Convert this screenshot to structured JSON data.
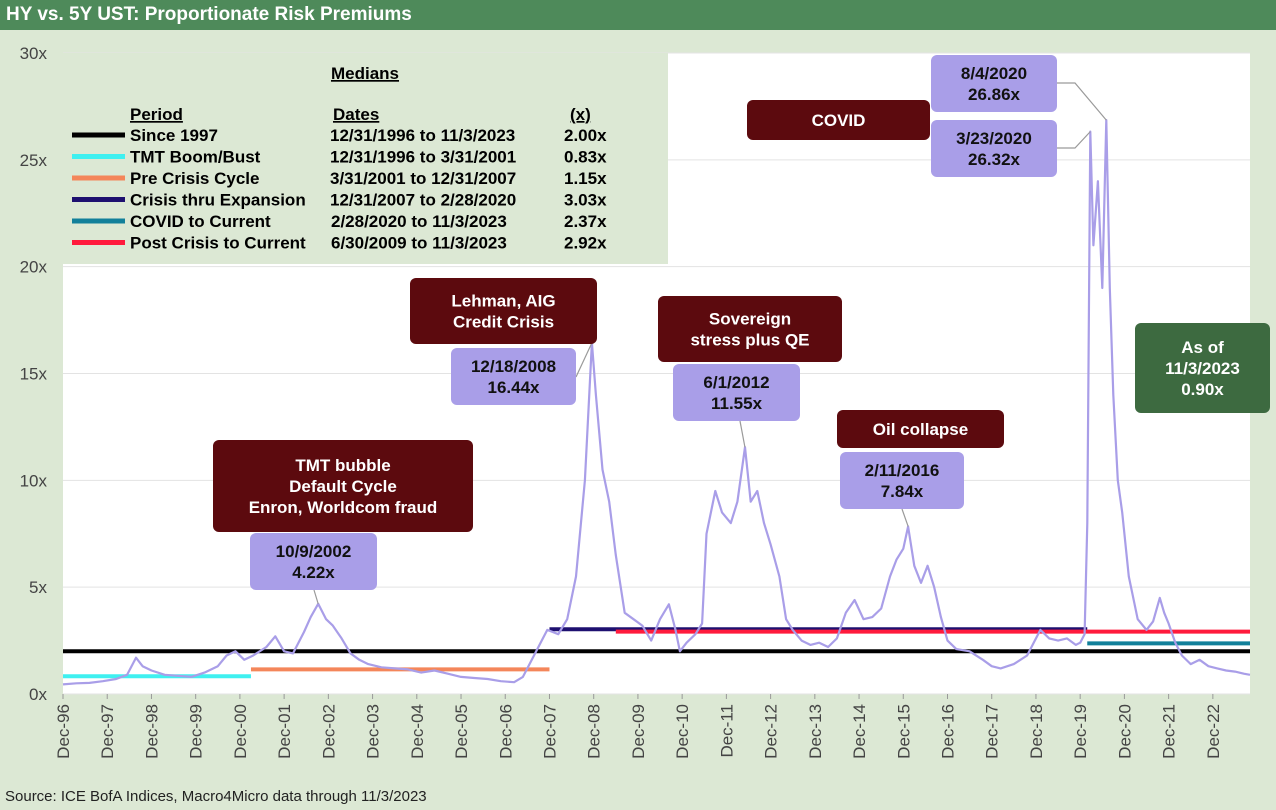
{
  "title": "HY vs. 5Y UST: Proportionate Risk Premiums",
  "source": "Source: ICE BofA Indices, Macro4Micro     data through 11/3/2023",
  "colors": {
    "header": "#4e8a5a",
    "background": "#dce8d4",
    "plot": "#ffffff",
    "series": "#a99ee8",
    "callout_dark": "#5c0a0e",
    "callout_lavender": "#a99ee8",
    "callout_green": "#3d6a40"
  },
  "chart_data": {
    "type": "line",
    "ylim": [
      0,
      30
    ],
    "yticks": [
      "0x",
      "5x",
      "10x",
      "15x",
      "20x",
      "25x",
      "30x"
    ],
    "xlim": [
      "12/31/1996",
      "11/3/2023"
    ],
    "xticks": [
      "Dec-96",
      "Dec-97",
      "Dec-98",
      "Dec-99",
      "Dec-00",
      "Dec-01",
      "Dec-02",
      "Dec-03",
      "Dec-04",
      "Dec-05",
      "Dec-06",
      "Dec-07",
      "Dec-08",
      "Dec-09",
      "Dec-10",
      "Dec-11",
      "Dec-12",
      "Dec-13",
      "Dec-14",
      "Dec-15",
      "Dec-16",
      "Dec-17",
      "Dec-18",
      "Dec-19",
      "Dec-20",
      "Dec-21",
      "Dec-22"
    ],
    "grid": true,
    "series_color": "#a99ee8",
    "series_points": [
      [
        1997.0,
        0.45
      ],
      [
        1997.3,
        0.5
      ],
      [
        1997.6,
        0.52
      ],
      [
        1997.9,
        0.6
      ],
      [
        1998.2,
        0.7
      ],
      [
        1998.45,
        0.9
      ],
      [
        1998.65,
        1.7
      ],
      [
        1998.8,
        1.3
      ],
      [
        1999.0,
        1.1
      ],
      [
        1999.3,
        0.9
      ],
      [
        1999.6,
        0.85
      ],
      [
        1999.9,
        0.8
      ],
      [
        2000.2,
        1.0
      ],
      [
        2000.5,
        1.3
      ],
      [
        2000.7,
        1.8
      ],
      [
        2000.9,
        2.0
      ],
      [
        2001.1,
        1.6
      ],
      [
        2001.3,
        1.8
      ],
      [
        2001.6,
        2.2
      ],
      [
        2001.8,
        2.7
      ],
      [
        2002.0,
        2.0
      ],
      [
        2002.2,
        1.9
      ],
      [
        2002.45,
        2.9
      ],
      [
        2002.6,
        3.6
      ],
      [
        2002.77,
        4.22
      ],
      [
        2002.95,
        3.5
      ],
      [
        2003.1,
        3.2
      ],
      [
        2003.3,
        2.6
      ],
      [
        2003.5,
        1.9
      ],
      [
        2003.7,
        1.6
      ],
      [
        2003.9,
        1.4
      ],
      [
        2004.2,
        1.25
      ],
      [
        2004.5,
        1.2
      ],
      [
        2004.8,
        1.15
      ],
      [
        2005.1,
        1.0
      ],
      [
        2005.4,
        1.1
      ],
      [
        2005.7,
        0.95
      ],
      [
        2006.0,
        0.8
      ],
      [
        2006.3,
        0.75
      ],
      [
        2006.6,
        0.7
      ],
      [
        2006.9,
        0.6
      ],
      [
        2007.2,
        0.55
      ],
      [
        2007.4,
        0.8
      ],
      [
        2007.6,
        1.6
      ],
      [
        2007.8,
        2.4
      ],
      [
        2007.95,
        3.0
      ],
      [
        2008.2,
        2.8
      ],
      [
        2008.4,
        3.5
      ],
      [
        2008.6,
        5.5
      ],
      [
        2008.8,
        10.0
      ],
      [
        2008.96,
        16.44
      ],
      [
        2009.05,
        14.0
      ],
      [
        2009.2,
        10.5
      ],
      [
        2009.35,
        9.0
      ],
      [
        2009.5,
        6.5
      ],
      [
        2009.7,
        3.8
      ],
      [
        2009.9,
        3.5
      ],
      [
        2010.1,
        3.2
      ],
      [
        2010.3,
        2.5
      ],
      [
        2010.5,
        3.5
      ],
      [
        2010.7,
        4.2
      ],
      [
        2010.85,
        3.0
      ],
      [
        2010.95,
        2.0
      ],
      [
        2011.1,
        2.4
      ],
      [
        2011.3,
        2.8
      ],
      [
        2011.45,
        3.3
      ],
      [
        2011.55,
        7.5
      ],
      [
        2011.75,
        9.5
      ],
      [
        2011.9,
        8.5
      ],
      [
        2012.1,
        8.0
      ],
      [
        2012.25,
        9.0
      ],
      [
        2012.42,
        11.55
      ],
      [
        2012.55,
        9.0
      ],
      [
        2012.7,
        9.5
      ],
      [
        2012.85,
        8.0
      ],
      [
        2013.0,
        7.0
      ],
      [
        2013.2,
        5.5
      ],
      [
        2013.35,
        3.5
      ],
      [
        2013.5,
        3.0
      ],
      [
        2013.7,
        2.5
      ],
      [
        2013.9,
        2.3
      ],
      [
        2014.1,
        2.4
      ],
      [
        2014.3,
        2.2
      ],
      [
        2014.5,
        2.6
      ],
      [
        2014.7,
        3.8
      ],
      [
        2014.9,
        4.4
      ],
      [
        2015.1,
        3.5
      ],
      [
        2015.3,
        3.6
      ],
      [
        2015.5,
        4.0
      ],
      [
        2015.7,
        5.5
      ],
      [
        2015.85,
        6.3
      ],
      [
        2016.0,
        6.8
      ],
      [
        2016.11,
        7.84
      ],
      [
        2016.25,
        6.0
      ],
      [
        2016.4,
        5.2
      ],
      [
        2016.55,
        6.0
      ],
      [
        2016.7,
        5.0
      ],
      [
        2016.85,
        3.6
      ],
      [
        2017.0,
        2.5
      ],
      [
        2017.2,
        2.1
      ],
      [
        2017.5,
        2.0
      ],
      [
        2017.8,
        1.6
      ],
      [
        2018.0,
        1.3
      ],
      [
        2018.2,
        1.2
      ],
      [
        2018.5,
        1.4
      ],
      [
        2018.8,
        1.8
      ],
      [
        2018.95,
        2.4
      ],
      [
        2019.1,
        3.0
      ],
      [
        2019.3,
        2.6
      ],
      [
        2019.5,
        2.5
      ],
      [
        2019.7,
        2.6
      ],
      [
        2019.9,
        2.3
      ],
      [
        2020.0,
        2.4
      ],
      [
        2020.1,
        2.8
      ],
      [
        2020.16,
        8.0
      ],
      [
        2020.23,
        26.32
      ],
      [
        2020.3,
        21.0
      ],
      [
        2020.4,
        24.0
      ],
      [
        2020.5,
        19.0
      ],
      [
        2020.59,
        26.86
      ],
      [
        2020.67,
        19.0
      ],
      [
        2020.75,
        14.0
      ],
      [
        2020.85,
        10.0
      ],
      [
        2020.95,
        8.5
      ],
      [
        2021.1,
        5.5
      ],
      [
        2021.3,
        3.5
      ],
      [
        2021.5,
        3.0
      ],
      [
        2021.65,
        3.4
      ],
      [
        2021.8,
        4.5
      ],
      [
        2021.9,
        3.8
      ],
      [
        2022.0,
        3.3
      ],
      [
        2022.15,
        2.4
      ],
      [
        2022.3,
        1.8
      ],
      [
        2022.5,
        1.4
      ],
      [
        2022.7,
        1.6
      ],
      [
        2022.9,
        1.3
      ],
      [
        2023.1,
        1.2
      ],
      [
        2023.3,
        1.1
      ],
      [
        2023.5,
        1.05
      ],
      [
        2023.7,
        0.95
      ],
      [
        2023.84,
        0.9
      ]
    ],
    "median_lines": [
      {
        "period": "Since 1997",
        "dates": "12/31/1996 to 11/3/2023",
        "value": 2.0,
        "label": "2.00x",
        "color": "#000000",
        "x0": 1997.0,
        "x1": 2023.84
      },
      {
        "period": "TMT Boom/Bust",
        "dates": "12/31/1996 to 3/31/2001",
        "value": 0.83,
        "label": "0.83x",
        "color": "#3ff0f0",
        "x0": 1997.0,
        "x1": 2001.25
      },
      {
        "period": "Pre Crisis Cycle",
        "dates": "3/31/2001 to 12/31/2007",
        "value": 1.15,
        "label": "1.15x",
        "color": "#f4865a",
        "x0": 2001.25,
        "x1": 2008.0
      },
      {
        "period": "Crisis thru Expansion",
        "dates": "12/31/2007 to 2/28/2020",
        "value": 3.03,
        "label": "3.03x",
        "color": "#1e1070",
        "x0": 2008.0,
        "x1": 2020.16
      },
      {
        "period": "COVID to Current",
        "dates": "2/28/2020 to  11/3/2023",
        "value": 2.37,
        "label": "2.37x",
        "color": "#12809a",
        "x0": 2020.16,
        "x1": 2023.84
      },
      {
        "period": "Post Crisis to Current",
        "dates": "6/30/2009 to   11/3/2023",
        "value": 2.92,
        "label": "2.92x",
        "color": "#ff1a3c",
        "x0": 2009.5,
        "x1": 2023.84
      }
    ],
    "legend_title": "Medians",
    "legend_headers": [
      "Period",
      "Dates",
      "(x)"
    ]
  },
  "annotations": {
    "event_boxes": [
      {
        "lines": [
          "TMT bubble",
          "Default Cycle",
          "Enron, Worldcom fraud"
        ]
      },
      {
        "lines": [
          "Lehman, AIG",
          "Credit Crisis"
        ]
      },
      {
        "lines": [
          "Sovereign",
          "stress plus QE"
        ]
      },
      {
        "lines": [
          "Oil collapse"
        ]
      },
      {
        "lines": [
          "COVID"
        ]
      }
    ],
    "point_labels": [
      {
        "lines": [
          "10/9/2002",
          "4.22x"
        ]
      },
      {
        "lines": [
          "12/18/2008",
          "16.44x"
        ]
      },
      {
        "lines": [
          "6/1/2012",
          "11.55x"
        ]
      },
      {
        "lines": [
          "2/11/2016",
          "7.84x"
        ]
      },
      {
        "lines": [
          "8/4/2020",
          "26.86x"
        ]
      },
      {
        "lines": [
          "3/23/2020",
          "26.32x"
        ]
      }
    ],
    "current": {
      "lines": [
        "As of",
        "11/3/2023",
        "0.90x"
      ]
    }
  }
}
